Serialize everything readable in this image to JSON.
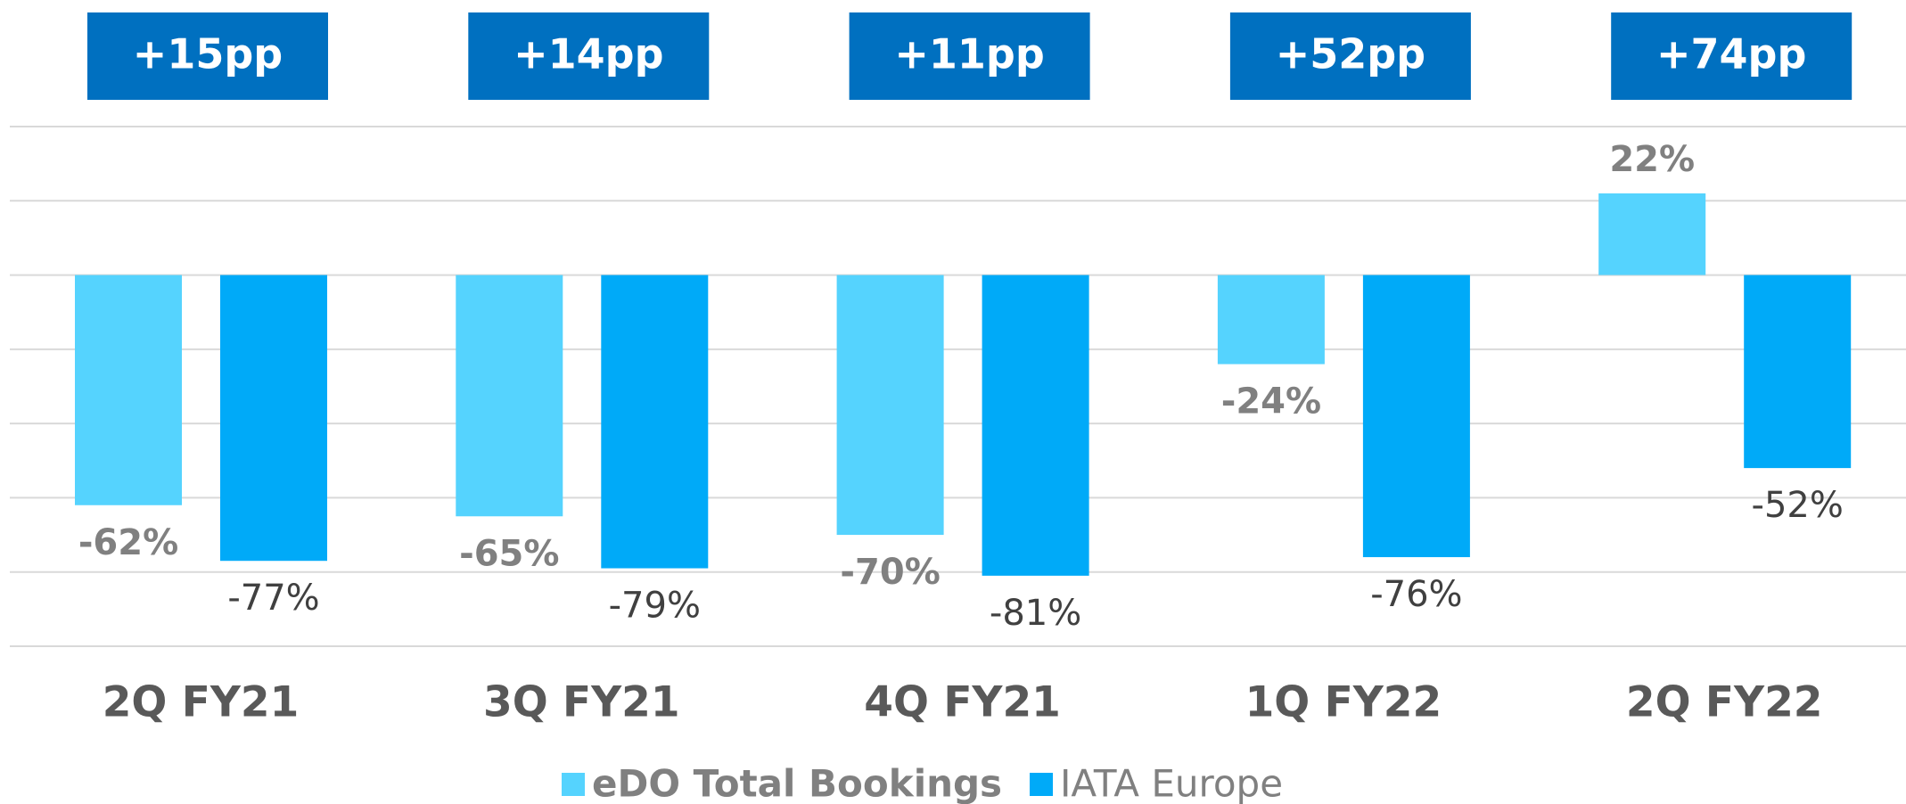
{
  "chart_data": {
    "type": "bar",
    "categories": [
      "2Q FY21",
      "3Q FY21",
      "4Q FY21",
      "1Q FY22",
      "2Q FY22"
    ],
    "annotations": [
      "+15pp",
      "+14pp",
      "+11pp",
      "+52pp",
      "+74pp"
    ],
    "series": [
      {
        "name": "eDO Total Bookings",
        "color": "#55d3fe",
        "values": [
          -62,
          -65,
          -70,
          -24,
          22
        ],
        "value_labels": [
          "-62%",
          "-65%",
          "-70%",
          "-24%",
          "22%"
        ]
      },
      {
        "name": "IATA Europe",
        "color": "#00aaf8",
        "values": [
          -77,
          -79,
          -81,
          -76,
          -52
        ],
        "value_labels": [
          "-77%",
          "-79%",
          "-81%",
          "-76%",
          "-52%"
        ]
      }
    ],
    "ylim": [
      -100,
      40
    ],
    "yticks": [
      -100,
      -80,
      -60,
      -40,
      -20,
      0,
      20,
      40
    ],
    "grid": true,
    "legend": "bottom"
  }
}
